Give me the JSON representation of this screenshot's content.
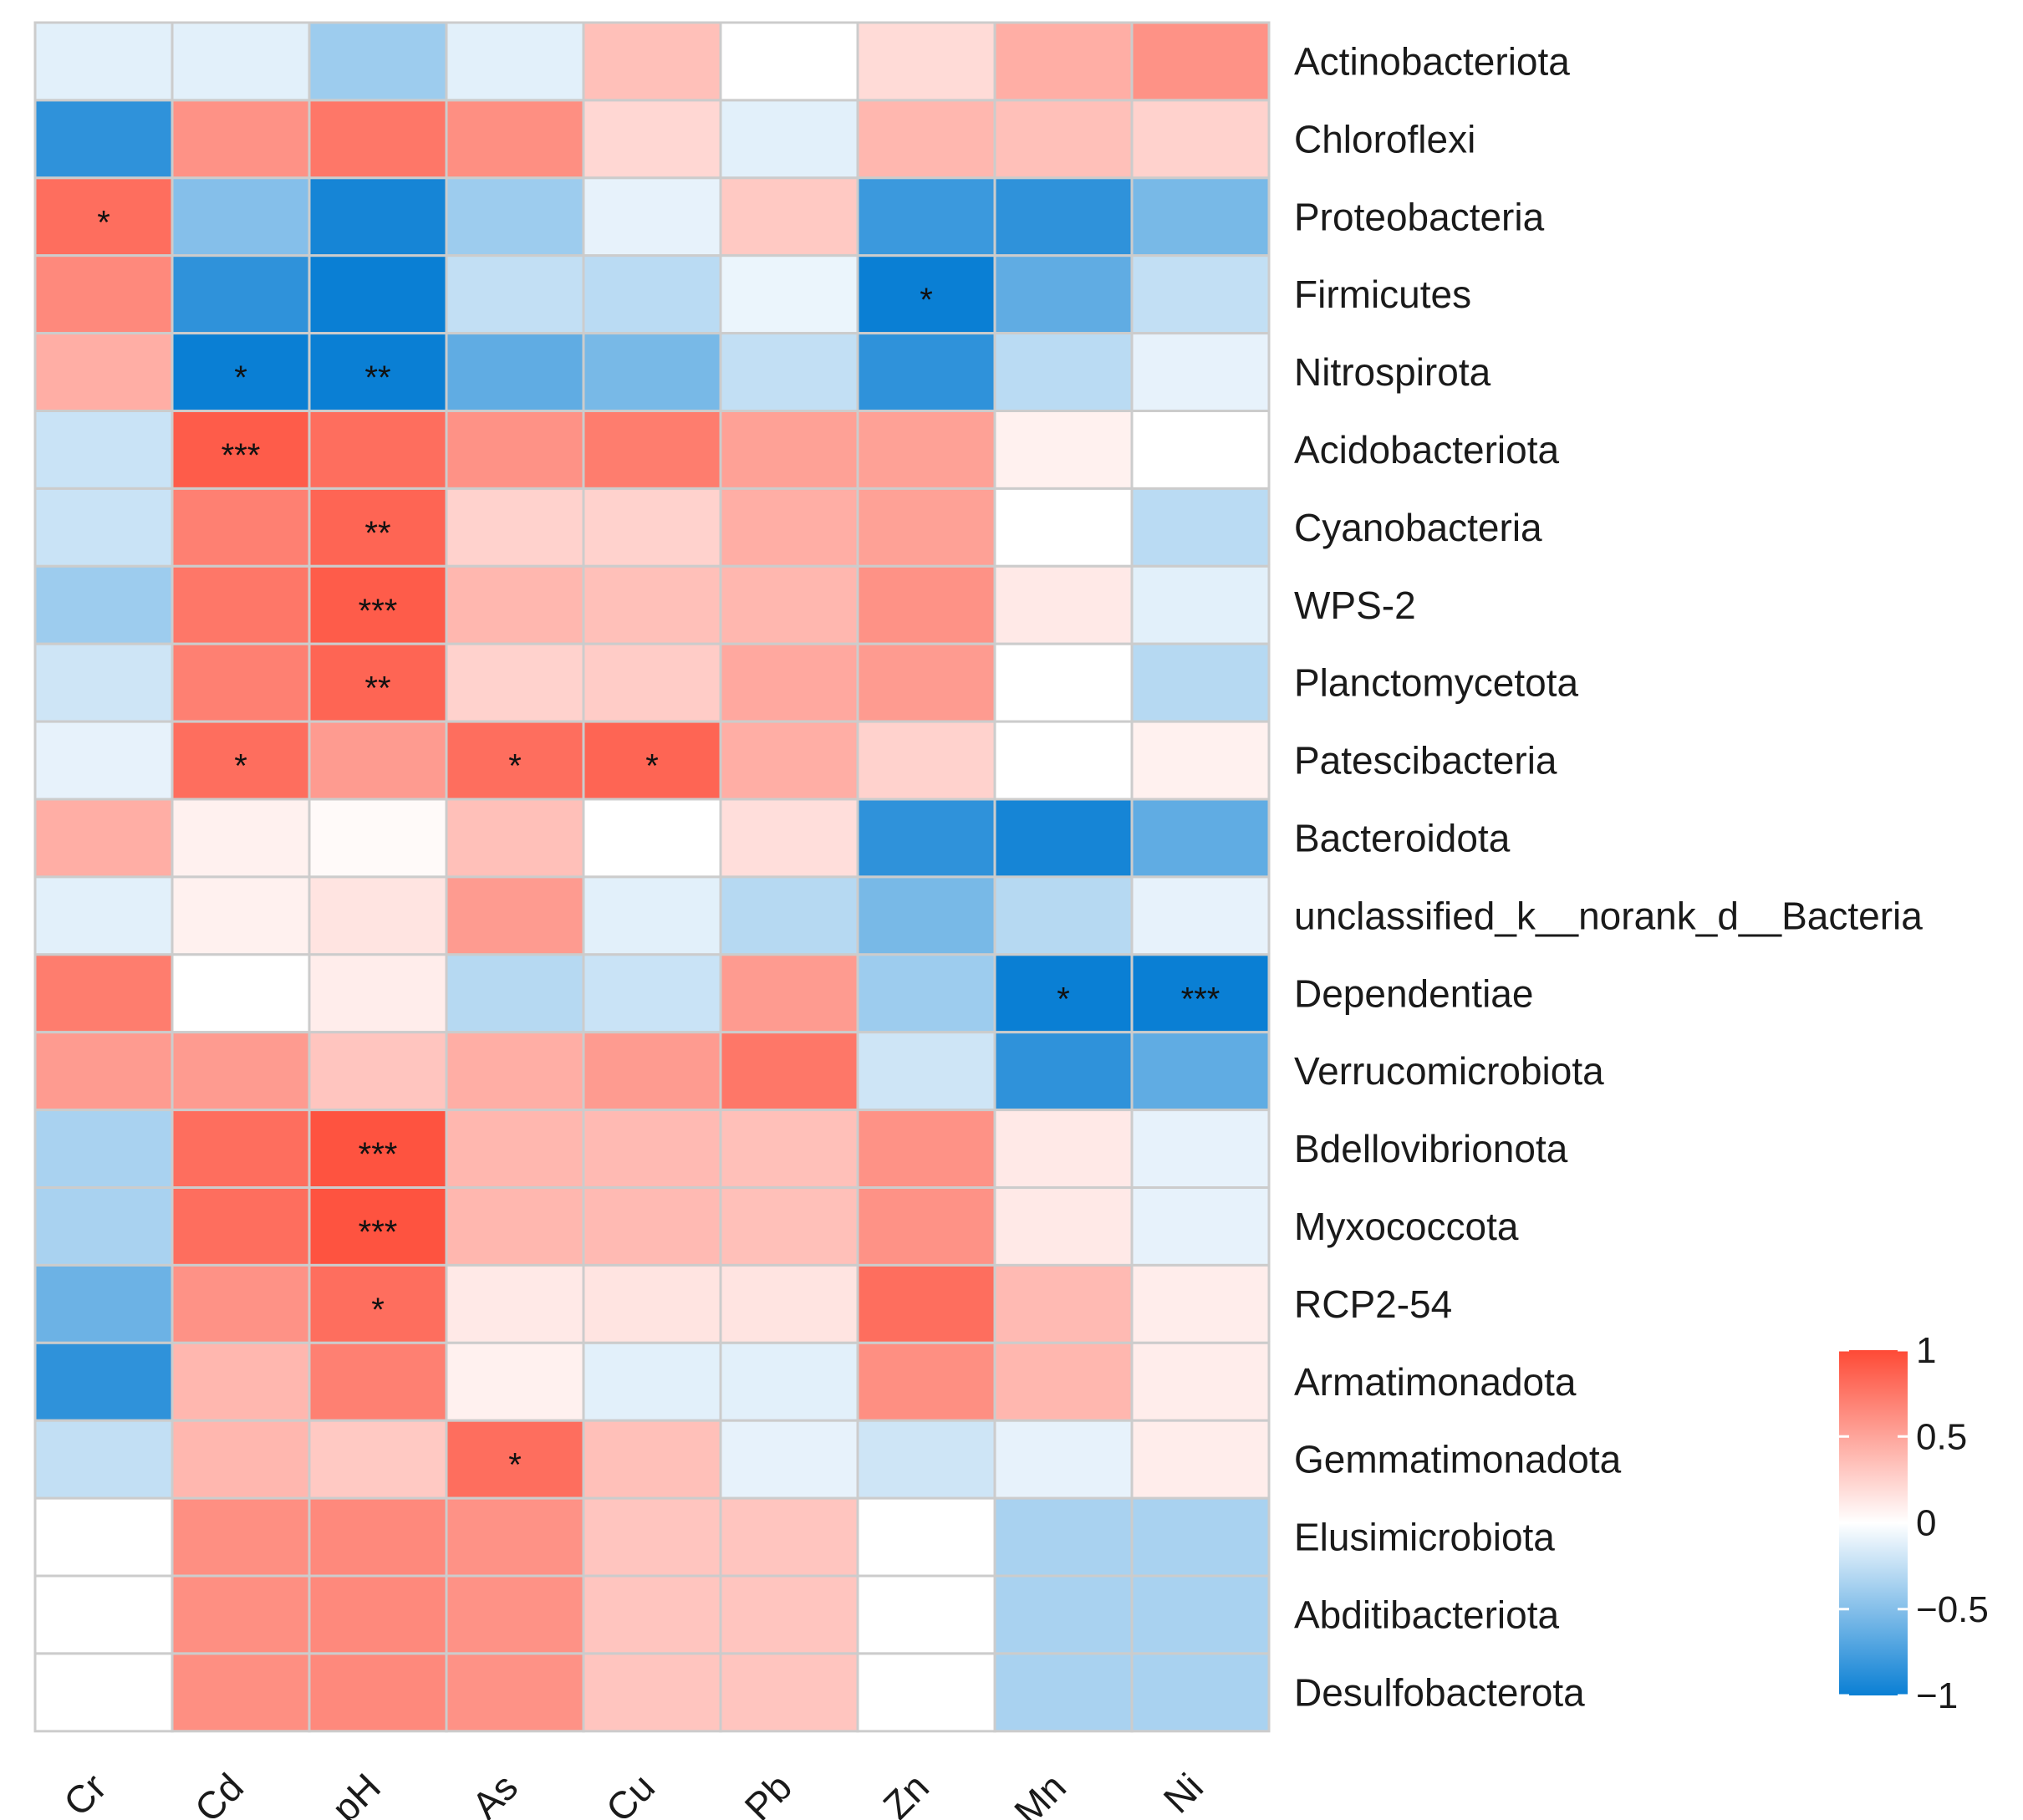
{
  "chart_data": {
    "type": "heatmap",
    "columns": [
      "Cr",
      "Cd",
      "pH",
      "As",
      "Cu",
      "Pb",
      "Zn",
      "Mn",
      "Ni"
    ],
    "rows": [
      "Actinobacteriota",
      "Chloroflexi",
      "Proteobacteria",
      "Firmicutes",
      "Nitrospirota",
      "Acidobacteriota",
      "Cyanobacteria",
      "WPS-2",
      "Planctomycetota",
      "Patescibacteria",
      "Bacteroidota",
      "unclassified_k__norank_d__Bacteria",
      "Dependentiae",
      "Verrucomicrobiota",
      "Bdellovibrionota",
      "Myxococcota",
      "RCP2-54",
      "Armatimonadota",
      "Gemmatimonadota",
      "Elusimicrobiota",
      "Abditibacteriota",
      "Desulfobacterota"
    ],
    "values": [
      [
        -0.12,
        -0.12,
        -0.4,
        -0.12,
        0.35,
        0.0,
        0.2,
        0.45,
        0.6
      ],
      [
        -0.85,
        0.6,
        0.75,
        0.62,
        0.22,
        -0.12,
        0.4,
        0.35,
        0.25
      ],
      [
        0.8,
        -0.5,
        -0.95,
        -0.4,
        -0.1,
        0.3,
        -0.8,
        -0.85,
        -0.55
      ],
      [
        0.65,
        -0.85,
        -1.0,
        -0.25,
        -0.28,
        -0.08,
        -1.0,
        -0.65,
        -0.25
      ],
      [
        0.45,
        -1.0,
        -1.0,
        -0.65,
        -0.55,
        -0.25,
        -0.85,
        -0.28,
        -0.1
      ],
      [
        -0.22,
        0.9,
        0.8,
        0.6,
        0.72,
        0.52,
        0.52,
        0.08,
        0.0
      ],
      [
        -0.22,
        0.7,
        0.85,
        0.25,
        0.25,
        0.45,
        0.52,
        0.0,
        -0.28
      ],
      [
        -0.4,
        0.75,
        0.9,
        0.4,
        0.35,
        0.4,
        0.6,
        0.12,
        -0.12
      ],
      [
        -0.2,
        0.7,
        0.85,
        0.25,
        0.28,
        0.48,
        0.55,
        0.0,
        -0.3
      ],
      [
        -0.1,
        0.8,
        0.55,
        0.8,
        0.85,
        0.45,
        0.25,
        0.0,
        0.08
      ],
      [
        0.45,
        0.08,
        0.03,
        0.35,
        0.0,
        0.18,
        -0.85,
        -0.95,
        -0.65
      ],
      [
        -0.12,
        0.08,
        0.15,
        0.55,
        -0.12,
        -0.3,
        -0.55,
        -0.3,
        -0.1
      ],
      [
        0.72,
        0.0,
        0.1,
        -0.3,
        -0.22,
        0.55,
        -0.4,
        -1.0,
        -1.0
      ],
      [
        0.55,
        0.55,
        0.32,
        0.45,
        0.55,
        0.75,
        -0.2,
        -0.85,
        -0.65
      ],
      [
        -0.35,
        0.8,
        0.95,
        0.4,
        0.38,
        0.35,
        0.6,
        0.12,
        -0.1
      ],
      [
        -0.35,
        0.8,
        0.95,
        0.4,
        0.38,
        0.35,
        0.6,
        0.12,
        -0.1
      ],
      [
        -0.6,
        0.6,
        0.8,
        0.12,
        0.15,
        0.15,
        0.8,
        0.38,
        0.1
      ],
      [
        -0.85,
        0.4,
        0.7,
        0.08,
        -0.12,
        -0.12,
        0.62,
        0.4,
        0.1
      ],
      [
        -0.25,
        0.4,
        0.3,
        0.8,
        0.35,
        -0.1,
        -0.2,
        -0.1,
        0.1
      ],
      [
        0.0,
        0.62,
        0.65,
        0.6,
        0.32,
        0.32,
        0.0,
        -0.35,
        -0.35
      ],
      [
        0.0,
        0.62,
        0.65,
        0.6,
        0.32,
        0.32,
        0.0,
        -0.35,
        -0.35
      ],
      [
        0.0,
        0.62,
        0.65,
        0.6,
        0.32,
        0.32,
        0.0,
        -0.35,
        -0.35
      ]
    ],
    "significance": [
      [
        "",
        "",
        "",
        "",
        "",
        "",
        "",
        "",
        ""
      ],
      [
        "",
        "",
        "",
        "",
        "",
        "",
        "",
        "",
        ""
      ],
      [
        "*",
        "",
        "",
        "",
        "",
        "",
        "",
        "",
        ""
      ],
      [
        "",
        "",
        "",
        "",
        "",
        "",
        "*",
        "",
        ""
      ],
      [
        "",
        "*",
        "**",
        "",
        "",
        "",
        "",
        "",
        ""
      ],
      [
        "",
        "***",
        "",
        "",
        "",
        "",
        "",
        "",
        ""
      ],
      [
        "",
        "",
        "**",
        "",
        "",
        "",
        "",
        "",
        ""
      ],
      [
        "",
        "",
        "***",
        "",
        "",
        "",
        "",
        "",
        ""
      ],
      [
        "",
        "",
        "**",
        "",
        "",
        "",
        "",
        "",
        ""
      ],
      [
        "",
        "*",
        "",
        "*",
        "*",
        "",
        "",
        "",
        ""
      ],
      [
        "",
        "",
        "",
        "",
        "",
        "",
        "",
        "",
        ""
      ],
      [
        "",
        "",
        "",
        "",
        "",
        "",
        "",
        "",
        ""
      ],
      [
        "",
        "",
        "",
        "",
        "",
        "",
        "",
        "*",
        "***"
      ],
      [
        "",
        "",
        "",
        "",
        "",
        "",
        "",
        "",
        ""
      ],
      [
        "",
        "",
        "***",
        "",
        "",
        "",
        "",
        "",
        ""
      ],
      [
        "",
        "",
        "***",
        "",
        "",
        "",
        "",
        "",
        ""
      ],
      [
        "",
        "",
        "*",
        "",
        "",
        "",
        "",
        "",
        ""
      ],
      [
        "",
        "",
        "",
        "",
        "",
        "",
        "",
        "",
        ""
      ],
      [
        "",
        "",
        "",
        "*",
        "",
        "",
        "",
        "",
        ""
      ],
      [
        "",
        "",
        "",
        "",
        "",
        "",
        "",
        "",
        ""
      ],
      [
        "",
        "",
        "",
        "",
        "",
        "",
        "",
        "",
        ""
      ],
      [
        "",
        "",
        "",
        "",
        "",
        "",
        "",
        "",
        ""
      ]
    ],
    "color_scale": {
      "min": -1,
      "max": 1,
      "low_color": "#0a7fd4",
      "mid_color": "#ffffff",
      "high_color": "#fe4a36",
      "ticks": [
        1,
        0.5,
        0,
        -0.5,
        -1
      ],
      "tick_labels": [
        "1",
        "0.5",
        "0",
        "−0.5",
        "−1"
      ]
    },
    "grid_color": "#cccccc",
    "legend_position": "bottom-right"
  }
}
